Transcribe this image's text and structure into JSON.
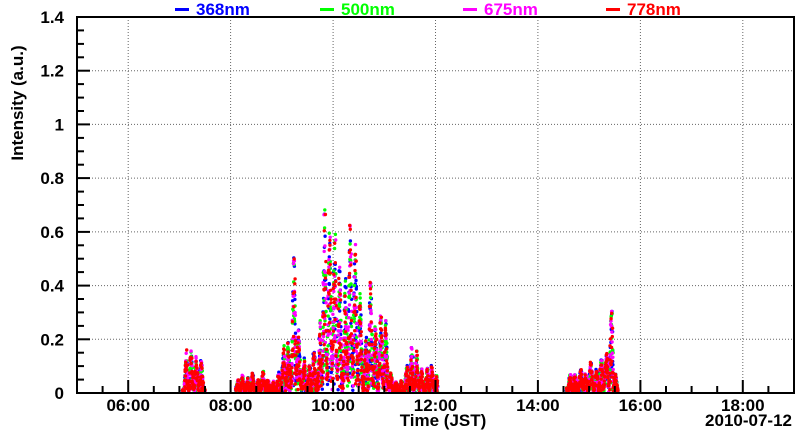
{
  "chart_data": {
    "type": "scatter",
    "title": "",
    "xlabel": "Time (JST)",
    "ylabel": "Intensity (a.u.)",
    "date_label": "2010-07-12",
    "x_range_hours": [
      5.0,
      19.0
    ],
    "ylim": [
      0,
      1.4
    ],
    "grid": "dotted at major ticks",
    "legend_position": "top",
    "x_minor_step_hours": 0.5,
    "y_minor_step": 0.05,
    "x_ticks": [
      {
        "hour": 6,
        "label": "06:00"
      },
      {
        "hour": 8,
        "label": "08:00"
      },
      {
        "hour": 10,
        "label": "10:00"
      },
      {
        "hour": 12,
        "label": "12:00"
      },
      {
        "hour": 14,
        "label": "14:00"
      },
      {
        "hour": 16,
        "label": "16:00"
      },
      {
        "hour": 18,
        "label": "18:00"
      }
    ],
    "y_ticks": [
      {
        "value": 0,
        "label": "0"
      },
      {
        "value": 0.2,
        "label": "0.2"
      },
      {
        "value": 0.4,
        "label": "0.4"
      },
      {
        "value": 0.6,
        "label": "0.6"
      },
      {
        "value": 0.8,
        "label": "0.8"
      },
      {
        "value": 1,
        "label": "1"
      },
      {
        "value": 1.2,
        "label": "1.2"
      },
      {
        "value": 1.4,
        "label": "1.4"
      }
    ],
    "series": [
      {
        "name": "368nm",
        "color": "#0000ff"
      },
      {
        "name": "500nm",
        "color": "#00ff00"
      },
      {
        "name": "675nm",
        "color": "#ff00ff"
      },
      {
        "name": "778nm",
        "color": "#ff0000"
      }
    ],
    "note": "All four wavelength series overlap; intensity fluctuates rapidly between ~0 and the shared upper envelope below. Envelope points are [time_hour_JST, intensity_au]. Data gaps: ~07:30-08:06, ~12:02-14:34, after ~15:34.",
    "envelope_points": [
      [
        7.06,
        0.02
      ],
      [
        7.1,
        0.1
      ],
      [
        7.14,
        0.16
      ],
      [
        7.18,
        0.13
      ],
      [
        7.22,
        0.17
      ],
      [
        7.26,
        0.13
      ],
      [
        7.3,
        0.16
      ],
      [
        7.34,
        0.11
      ],
      [
        7.38,
        0.13
      ],
      [
        7.43,
        0.12
      ],
      [
        7.47,
        0.07
      ],
      [
        7.5,
        0.03
      ],
      [
        8.1,
        0.03
      ],
      [
        8.16,
        0.06
      ],
      [
        8.22,
        0.07
      ],
      [
        8.28,
        0.04
      ],
      [
        8.35,
        0.06
      ],
      [
        8.42,
        0.08
      ],
      [
        8.49,
        0.04
      ],
      [
        8.56,
        0.06
      ],
      [
        8.64,
        0.08
      ],
      [
        8.72,
        0.05
      ],
      [
        8.8,
        0.04
      ],
      [
        8.88,
        0.05
      ],
      [
        8.95,
        0.08
      ],
      [
        9.01,
        0.13
      ],
      [
        9.06,
        0.2
      ],
      [
        9.11,
        0.23
      ],
      [
        9.15,
        0.13
      ],
      [
        9.2,
        0.38
      ],
      [
        9.24,
        0.63
      ],
      [
        9.27,
        0.55
      ],
      [
        9.31,
        0.3
      ],
      [
        9.35,
        0.17
      ],
      [
        9.4,
        0.09
      ],
      [
        9.45,
        0.14
      ],
      [
        9.5,
        0.07
      ],
      [
        9.56,
        0.13
      ],
      [
        9.62,
        0.17
      ],
      [
        9.67,
        0.09
      ],
      [
        9.72,
        0.14
      ],
      [
        9.76,
        0.35
      ],
      [
        9.8,
        0.58
      ],
      [
        9.83,
        0.7
      ],
      [
        9.86,
        0.72
      ],
      [
        9.89,
        0.66
      ],
      [
        9.92,
        0.71
      ],
      [
        9.95,
        0.63
      ],
      [
        9.98,
        0.69
      ],
      [
        10.01,
        0.6
      ],
      [
        10.04,
        0.66
      ],
      [
        10.08,
        0.57
      ],
      [
        10.12,
        0.5
      ],
      [
        10.16,
        0.34
      ],
      [
        10.2,
        0.27
      ],
      [
        10.24,
        0.42
      ],
      [
        10.28,
        0.55
      ],
      [
        10.32,
        0.62
      ],
      [
        10.36,
        0.64
      ],
      [
        10.4,
        0.57
      ],
      [
        10.44,
        0.61
      ],
      [
        10.48,
        0.48
      ],
      [
        10.52,
        0.4
      ],
      [
        10.56,
        0.26
      ],
      [
        10.6,
        0.14
      ],
      [
        10.64,
        0.2
      ],
      [
        10.68,
        0.36
      ],
      [
        10.72,
        0.42
      ],
      [
        10.76,
        0.38
      ],
      [
        10.8,
        0.3
      ],
      [
        10.84,
        0.22
      ],
      [
        10.88,
        0.26
      ],
      [
        10.93,
        0.29
      ],
      [
        10.98,
        0.25
      ],
      [
        11.03,
        0.27
      ],
      [
        11.08,
        0.16
      ],
      [
        11.13,
        0.07
      ],
      [
        11.18,
        0.05
      ],
      [
        11.24,
        0.04
      ],
      [
        11.3,
        0.05
      ],
      [
        11.36,
        0.04
      ],
      [
        11.43,
        0.09
      ],
      [
        11.48,
        0.14
      ],
      [
        11.53,
        0.17
      ],
      [
        11.58,
        0.14
      ],
      [
        11.63,
        0.16
      ],
      [
        11.68,
        0.12
      ],
      [
        11.73,
        0.09
      ],
      [
        11.79,
        0.06
      ],
      [
        11.85,
        0.1
      ],
      [
        11.91,
        0.12
      ],
      [
        11.96,
        0.07
      ],
      [
        12.0,
        0.1
      ],
      [
        12.04,
        0.04
      ],
      [
        14.56,
        0.03
      ],
      [
        14.61,
        0.08
      ],
      [
        14.66,
        0.06
      ],
      [
        14.71,
        0.09
      ],
      [
        14.76,
        0.05
      ],
      [
        14.82,
        0.08
      ],
      [
        14.88,
        0.1
      ],
      [
        14.94,
        0.07
      ],
      [
        15.0,
        0.12
      ],
      [
        15.06,
        0.11
      ],
      [
        15.12,
        0.08
      ],
      [
        15.18,
        0.11
      ],
      [
        15.24,
        0.13
      ],
      [
        15.3,
        0.12
      ],
      [
        15.35,
        0.15
      ],
      [
        15.4,
        0.25
      ],
      [
        15.44,
        0.31
      ],
      [
        15.47,
        0.26
      ],
      [
        15.5,
        0.14
      ],
      [
        15.53,
        0.05
      ],
      [
        15.56,
        0.02
      ]
    ]
  }
}
